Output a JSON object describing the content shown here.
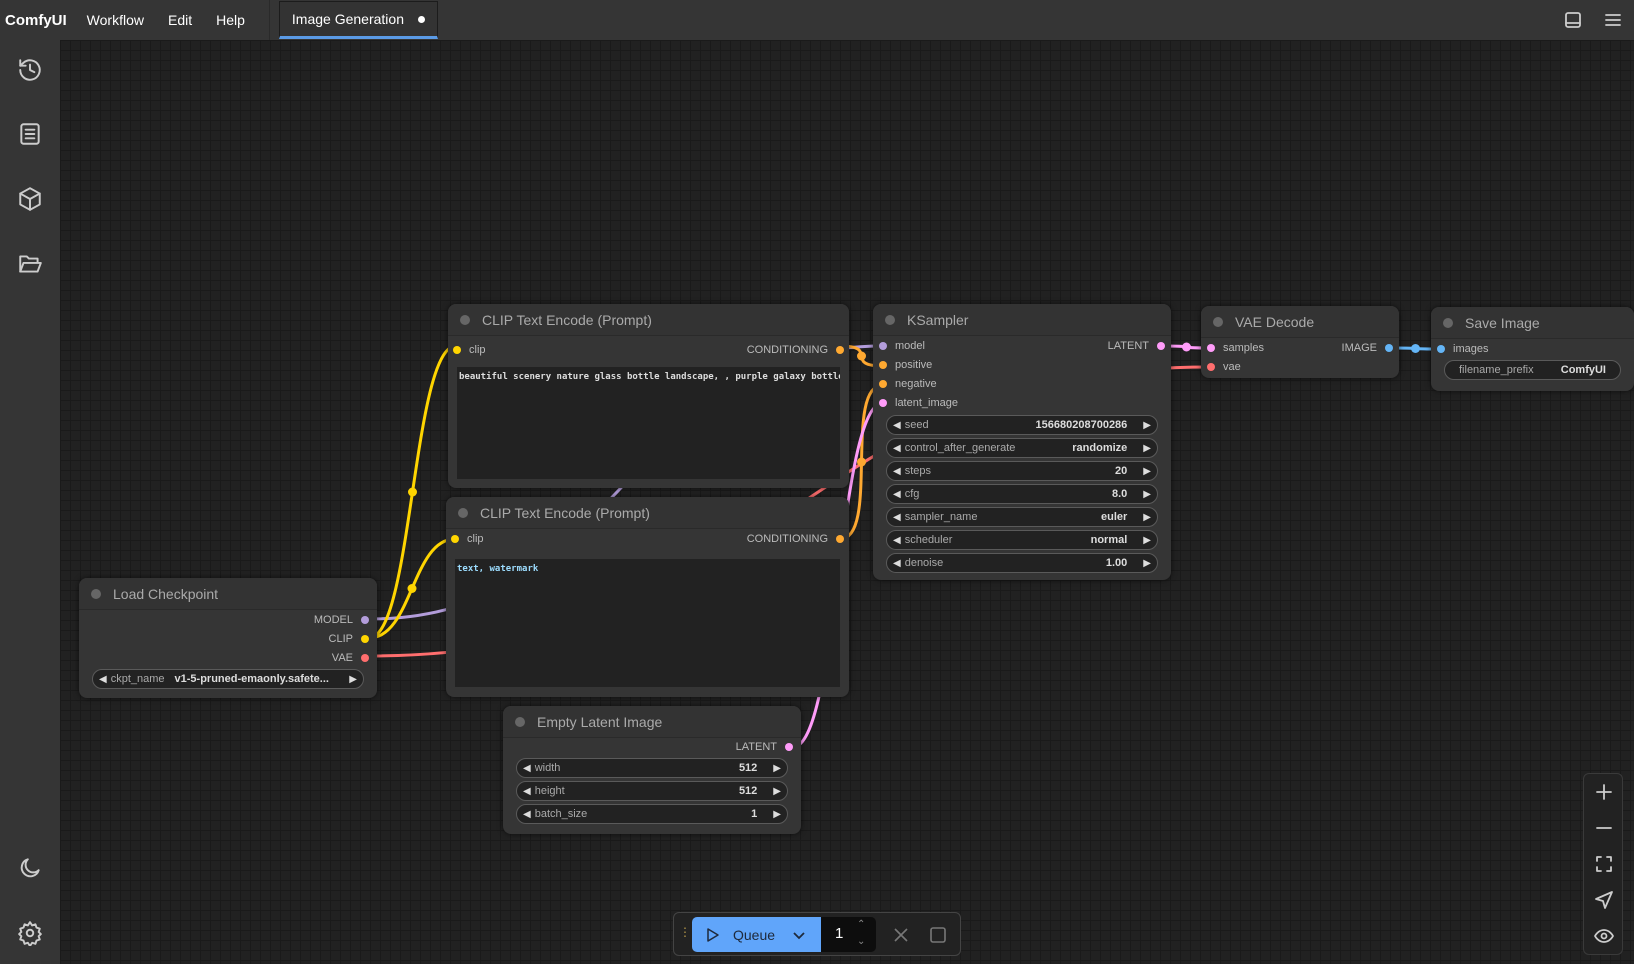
{
  "app": {
    "name": "ComfyUI"
  },
  "menu": {
    "items": [
      "Workflow",
      "Edit",
      "Help"
    ]
  },
  "tabs": [
    {
      "label": "Image Generation",
      "unsaved": true
    }
  ],
  "sidebar": {
    "icons": [
      "history-icon",
      "queue-list-icon",
      "model-library-icon",
      "workflows-folder-icon",
      "theme-moon-icon",
      "settings-gear-icon"
    ]
  },
  "colors": {
    "model": "#b39ddb",
    "clip": "#ffd500",
    "vae": "#ff6e6e",
    "conditioning": "#ffa931",
    "latent": "#ff9cf9",
    "image": "#64b5f6",
    "accent": "#5b9be6",
    "queue": "#60a5fa"
  },
  "nodes": {
    "clip_pos": {
      "title": "CLIP Text Encode (Prompt)",
      "input": "clip",
      "output": "CONDITIONING",
      "text": "beautiful scenery nature glass bottle landscape, , purple galaxy bottle,"
    },
    "clip_neg": {
      "title": "CLIP Text Encode (Prompt)",
      "input": "clip",
      "output": "CONDITIONING",
      "text": "text, watermark"
    },
    "ksampler": {
      "title": "KSampler",
      "inputs": [
        "model",
        "positive",
        "negative",
        "latent_image"
      ],
      "output": "LATENT",
      "widgets": [
        {
          "label": "seed",
          "value": "156680208700286"
        },
        {
          "label": "control_after_generate",
          "value": "randomize"
        },
        {
          "label": "steps",
          "value": "20"
        },
        {
          "label": "cfg",
          "value": "8.0"
        },
        {
          "label": "sampler_name",
          "value": "euler"
        },
        {
          "label": "scheduler",
          "value": "normal"
        },
        {
          "label": "denoise",
          "value": "1.00"
        }
      ]
    },
    "vae_decode": {
      "title": "VAE Decode",
      "inputs": [
        "samples",
        "vae"
      ],
      "output": "IMAGE"
    },
    "save_image": {
      "title": "Save Image",
      "input": "images",
      "widget": {
        "label": "filename_prefix",
        "value": "ComfyUI"
      }
    },
    "load_ckpt": {
      "title": "Load Checkpoint",
      "outputs": [
        "MODEL",
        "CLIP",
        "VAE"
      ],
      "widget": {
        "label": "ckpt_name",
        "value": "v1-5-pruned-emaonly.safete..."
      }
    },
    "empty_latent": {
      "title": "Empty Latent Image",
      "output": "LATENT",
      "widgets": [
        {
          "label": "width",
          "value": "512"
        },
        {
          "label": "height",
          "value": "512"
        },
        {
          "label": "batch_size",
          "value": "1"
        }
      ]
    }
  },
  "queue": {
    "label": "Queue",
    "count": "1"
  }
}
